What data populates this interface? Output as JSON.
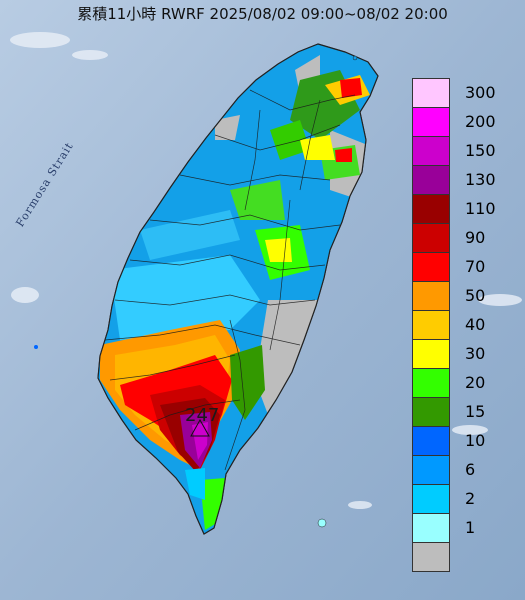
{
  "title": "累積11小時 RWRF 2025/08/02 09:00~08/02 20:00",
  "strait_label": "Formosa Strait",
  "max_value": "247",
  "legend": [
    {
      "label": "300",
      "color": "#ffc6ff"
    },
    {
      "label": "200",
      "color": "#ff00ff"
    },
    {
      "label": "150",
      "color": "#cc00cc"
    },
    {
      "label": "130",
      "color": "#990099"
    },
    {
      "label": "110",
      "color": "#990000"
    },
    {
      "label": "90",
      "color": "#cc0000"
    },
    {
      "label": "70",
      "color": "#ff0000"
    },
    {
      "label": "50",
      "color": "#ff9900"
    },
    {
      "label": "40",
      "color": "#ffcc00"
    },
    {
      "label": "30",
      "color": "#ffff00"
    },
    {
      "label": "20",
      "color": "#33ff00"
    },
    {
      "label": "15",
      "color": "#339900"
    },
    {
      "label": "10",
      "color": "#0066ff"
    },
    {
      "label": "6",
      "color": "#0099ff"
    },
    {
      "label": "2",
      "color": "#00ccff"
    },
    {
      "label": "1",
      "color": "#99ffff"
    },
    {
      "label": "",
      "color": "#bdbdbd"
    }
  ]
}
